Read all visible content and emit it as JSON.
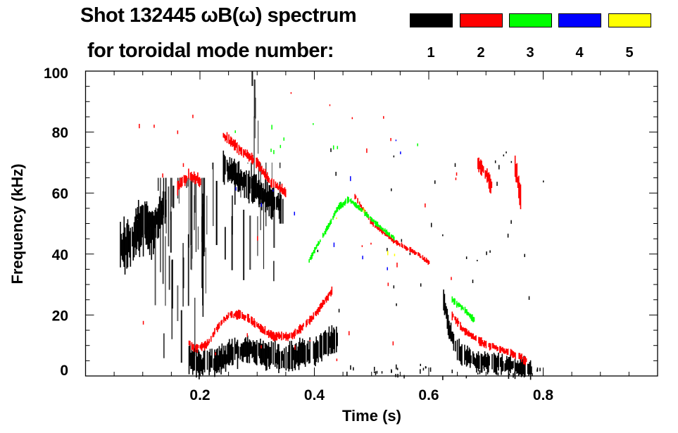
{
  "chart_data": {
    "type": "heatmap",
    "title": "Shot 132445 ωB(ω) spectrum",
    "subtitle": "for toroidal mode number:",
    "xlabel": "Time (s)",
    "ylabel": "Frequency (kHz)",
    "xlim": [
      0,
      1.0
    ],
    "ylim": [
      0,
      100
    ],
    "xticks": [
      0.2,
      0.4,
      0.6,
      0.8
    ],
    "xtick_labels": [
      "0.2",
      "0.4",
      "0.6",
      "0.8"
    ],
    "yticks": [
      0,
      20,
      40,
      60,
      80,
      100
    ],
    "ytick_labels": [
      "0",
      "20",
      "40",
      "60",
      "80",
      "100"
    ],
    "legend": {
      "placement": "top-right",
      "entries": [
        {
          "label": "1",
          "color": "#000000"
        },
        {
          "label": "2",
          "color": "#ff0000"
        },
        {
          "label": "3",
          "color": "#00ff00"
        },
        {
          "label": "4",
          "color": "#0000ff"
        },
        {
          "label": "5",
          "color": "#ffff00"
        }
      ]
    },
    "series": [
      {
        "name": "1",
        "color": "#000000",
        "features": [
          {
            "kind": "band",
            "t": [
              0.06,
              0.08,
              0.1,
              0.12
            ],
            "f": [
              42,
              44,
              48,
              46
            ],
            "width": 14
          },
          {
            "kind": "band",
            "t": [
              0.09,
              0.12,
              0.14
            ],
            "f": [
              52,
              50,
              55
            ],
            "width": 10
          },
          {
            "kind": "streaks",
            "t": [
              0.12,
              0.21
            ],
            "f": [
              4,
              65
            ],
            "count": 45
          },
          {
            "kind": "band",
            "t": [
              0.18,
              0.2,
              0.23,
              0.26,
              0.28,
              0.31,
              0.35,
              0.4,
              0.44
            ],
            "f": [
              6,
              4,
              5,
              8,
              9,
              7,
              6,
              8,
              13
            ],
            "width": 8
          },
          {
            "kind": "band",
            "t": [
              0.24,
              0.26,
              0.29,
              0.32,
              0.345
            ],
            "f": [
              69,
              66,
              62,
              58,
              55
            ],
            "width": 9
          },
          {
            "kind": "streaks",
            "t": [
              0.2,
              0.34
            ],
            "f": [
              30,
              70
            ],
            "count": 25
          },
          {
            "kind": "streaks",
            "t": [
              0.29,
              0.31
            ],
            "f": [
              60,
              100
            ],
            "count": 6
          },
          {
            "kind": "band",
            "t": [
              0.625,
              0.635,
              0.65,
              0.68,
              0.72,
              0.78
            ],
            "f": [
              25,
              15,
              8,
              5,
              4,
              2
            ],
            "width": 6
          },
          {
            "kind": "dots",
            "t": [
              0.45,
              0.8
            ],
            "f": [
              0,
              4
            ],
            "count": 40
          },
          {
            "kind": "dots",
            "t": [
              0.4,
              0.8
            ],
            "f": [
              20,
              75
            ],
            "count": 35
          }
        ]
      },
      {
        "name": "2",
        "color": "#ff0000",
        "features": [
          {
            "kind": "band",
            "t": [
              0.18,
              0.19,
              0.21,
              0.23,
              0.25,
              0.27,
              0.29,
              0.31,
              0.33,
              0.36,
              0.4,
              0.43
            ],
            "f": [
              11,
              9,
              10,
              16,
              20,
              20,
              18,
              15,
              13,
              13,
              20,
              28
            ],
            "width": 2.5
          },
          {
            "kind": "band",
            "t": [
              0.24,
              0.27,
              0.3,
              0.32,
              0.35
            ],
            "f": [
              79,
              74,
              70,
              64,
              60
            ],
            "width": 3
          },
          {
            "kind": "band",
            "t": [
              0.16,
              0.18,
              0.2
            ],
            "f": [
              62,
              66,
              64
            ],
            "width": 4
          },
          {
            "kind": "band",
            "t": [
              0.47,
              0.5,
              0.54,
              0.58,
              0.6
            ],
            "f": [
              59,
              50,
              44,
              40,
              37
            ],
            "width": 1.5
          },
          {
            "kind": "band",
            "t": [
              0.64,
              0.66,
              0.69,
              0.72,
              0.75,
              0.77
            ],
            "f": [
              20,
              15,
              11,
              9,
              7,
              5
            ],
            "width": 2.5
          },
          {
            "kind": "band",
            "t": [
              0.685,
              0.7,
              0.71
            ],
            "f": [
              70,
              66,
              62
            ],
            "width": 5
          },
          {
            "kind": "band",
            "t": [
              0.75,
              0.755,
              0.76
            ],
            "f": [
              69,
              64,
              58
            ],
            "width": 7
          },
          {
            "kind": "dots",
            "t": [
              0.08,
              0.65
            ],
            "f": [
              0,
              95
            ],
            "count": 30
          }
        ]
      },
      {
        "name": "3",
        "color": "#00ff00",
        "features": [
          {
            "kind": "band",
            "t": [
              0.39,
              0.42,
              0.44,
              0.46
            ],
            "f": [
              38,
              48,
              55,
              58
            ],
            "width": 2
          },
          {
            "kind": "band",
            "t": [
              0.46,
              0.49,
              0.52,
              0.54
            ],
            "f": [
              58,
              53,
              48,
              45
            ],
            "width": 1.5
          },
          {
            "kind": "band",
            "t": [
              0.64,
              0.66,
              0.68
            ],
            "f": [
              25,
              22,
              18
            ],
            "width": 2
          },
          {
            "kind": "dots",
            "t": [
              0.2,
              0.6
            ],
            "f": [
              70,
              84
            ],
            "count": 10
          }
        ]
      },
      {
        "name": "4",
        "color": "#0000ff",
        "features": [
          {
            "kind": "dots",
            "t": [
              0.25,
              0.63
            ],
            "f": [
              30,
              78
            ],
            "count": 10
          }
        ]
      },
      {
        "name": "5",
        "color": "#ffff00",
        "features": [
          {
            "kind": "dots",
            "t": [
              0.4,
              0.55
            ],
            "f": [
              35,
              72
            ],
            "count": 4
          }
        ]
      }
    ]
  }
}
